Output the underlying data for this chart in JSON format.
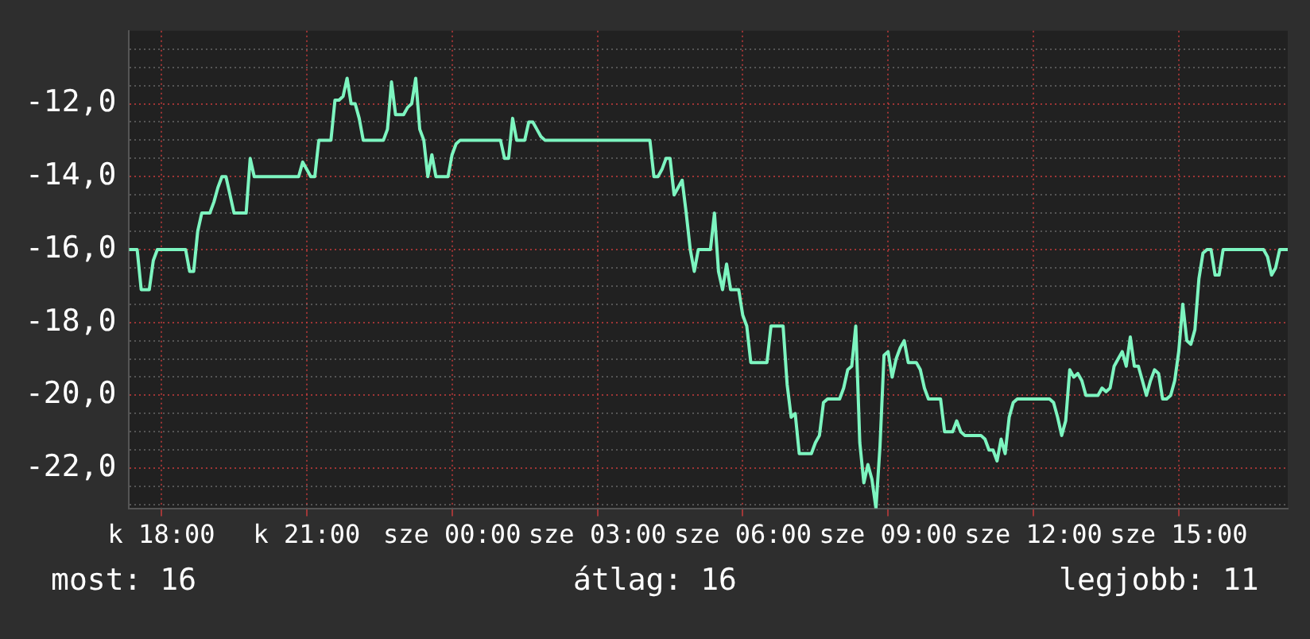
{
  "chart_data": {
    "type": "line",
    "categories": [
      null,
      null,
      null,
      null,
      null,
      null,
      null,
      null,
      "k 18:00",
      null,
      null,
      null,
      null,
      null,
      null,
      null,
      null,
      null,
      null,
      null,
      null,
      null,
      null,
      null,
      null,
      null,
      null,
      null,
      null,
      null,
      null,
      null,
      null,
      null,
      null,
      null,
      null,
      null,
      null,
      null,
      null,
      null,
      null,
      null,
      "k 21:00",
      null,
      null,
      null,
      null,
      null,
      null,
      null,
      null,
      null,
      null,
      null,
      null,
      null,
      null,
      null,
      null,
      null,
      null,
      null,
      null,
      null,
      null,
      null,
      null,
      null,
      null,
      null,
      null,
      null,
      null,
      null,
      null,
      null,
      null,
      null,
      "sze 00:00",
      null,
      null,
      null,
      null,
      null,
      null,
      null,
      null,
      null,
      null,
      null,
      null,
      null,
      null,
      null,
      null,
      null,
      null,
      null,
      null,
      null,
      null,
      null,
      null,
      null,
      null,
      null,
      null,
      null,
      null,
      null,
      null,
      null,
      null,
      null,
      "sze 03:00",
      null,
      null,
      null,
      null,
      null,
      null,
      null,
      null,
      null,
      null,
      null,
      null,
      null,
      null,
      null,
      null,
      null,
      null,
      null,
      null,
      null,
      null,
      null,
      null,
      null,
      null,
      null,
      null,
      null,
      null,
      null,
      null,
      null,
      null,
      null,
      "sze 06:00",
      null,
      null,
      null,
      null,
      null,
      null,
      null,
      null,
      null,
      null,
      null,
      null,
      null,
      null,
      null,
      null,
      null,
      null,
      null,
      null,
      null,
      null,
      null,
      null,
      null,
      null,
      null,
      null,
      null,
      null,
      null,
      null,
      null,
      null,
      null,
      "sze 09:00",
      null,
      null,
      null,
      null,
      null,
      null,
      null,
      null,
      null,
      null,
      null,
      null,
      null,
      null,
      null,
      null,
      null,
      null,
      null,
      null,
      null,
      null,
      null,
      null,
      null,
      null,
      null,
      null,
      null,
      null,
      null,
      null,
      null,
      null,
      null,
      "sze 12:00",
      null,
      null,
      null,
      null,
      null,
      null,
      null,
      null,
      null,
      null,
      null,
      null,
      null,
      null,
      null,
      null,
      null,
      null,
      null,
      null,
      null,
      null,
      null,
      null,
      null,
      null,
      null,
      null,
      null,
      null,
      null,
      null,
      null,
      null,
      null,
      "sze 15:00",
      null,
      null,
      null,
      null,
      null,
      null,
      null,
      null,
      null,
      null,
      null,
      null,
      null,
      null,
      null,
      null,
      null,
      null,
      null,
      null,
      null,
      null,
      null,
      null,
      null,
      null,
      null
    ],
    "series": [
      {
        "color": "#7df5c0",
        "values": [
          -16,
          -16,
          -16,
          -17.1,
          -17.1,
          -17.1,
          -16.3,
          -16,
          -16,
          -16,
          -16,
          -16,
          -16,
          -16,
          -16,
          -16.6,
          -16.6,
          -15.5,
          -15,
          -15,
          -15,
          -14.7,
          -14.3,
          -14,
          -14,
          -14.5,
          -15,
          -15,
          -15,
          -15,
          -13.5,
          -14,
          -14,
          -14,
          -14,
          -14,
          -14,
          -14,
          -14,
          -14,
          -14,
          -14,
          -14,
          -13.6,
          -13.8,
          -14,
          -14,
          -13,
          -13,
          -13,
          -13,
          -11.9,
          -11.9,
          -11.8,
          -11.3,
          -12,
          -12,
          -12.4,
          -13,
          -13,
          -13,
          -13,
          -13,
          -13,
          -12.7,
          -11.4,
          -12.3,
          -12.3,
          -12.3,
          -12.1,
          -12,
          -11.3,
          -12.7,
          -13,
          -14,
          -13.4,
          -14,
          -14,
          -14,
          -14,
          -13.4,
          -13.1,
          -13,
          -13,
          -13,
          -13,
          -13,
          -13,
          -13,
          -13,
          -13,
          -13,
          -13,
          -13.5,
          -13.5,
          -12.4,
          -13,
          -13,
          -13,
          -12.5,
          -12.5,
          -12.7,
          -12.9,
          -13,
          -13,
          -13,
          -13,
          -13,
          -13,
          -13,
          -13,
          -13,
          -13,
          -13,
          -13,
          -13,
          -13,
          -13,
          -13,
          -13,
          -13,
          -13,
          -13,
          -13,
          -13,
          -13,
          -13,
          -13,
          -13,
          -13,
          -14,
          -14,
          -13.8,
          -13.5,
          -13.5,
          -14.5,
          -14.3,
          -14.1,
          -15,
          -16,
          -16.6,
          -16,
          -16,
          -16,
          -16,
          -15,
          -16.6,
          -17.1,
          -16.4,
          -17.1,
          -17.1,
          -17.1,
          -17.8,
          -18.1,
          -19.1,
          -19.1,
          -19.1,
          -19.1,
          -19.1,
          -18.1,
          -18.1,
          -18.1,
          -18.1,
          -19.7,
          -20.6,
          -20.5,
          -21.6,
          -21.6,
          -21.6,
          -21.6,
          -21.3,
          -21.1,
          -20.2,
          -20.1,
          -20.1,
          -20.1,
          -20.1,
          -19.8,
          -19.3,
          -19.2,
          -18.1,
          -21.3,
          -22.4,
          -21.9,
          -22.3,
          -23.1,
          -21.4,
          -18.9,
          -18.8,
          -19.5,
          -19,
          -18.7,
          -18.5,
          -19.1,
          -19.1,
          -19.1,
          -19.3,
          -19.8,
          -20.1,
          -20.1,
          -20.1,
          -20.1,
          -21,
          -21,
          -21,
          -20.7,
          -21,
          -21.1,
          -21.1,
          -21.1,
          -21.1,
          -21.1,
          -21.2,
          -21.5,
          -21.5,
          -21.8,
          -21.2,
          -21.6,
          -20.6,
          -20.2,
          -20.1,
          -20.1,
          -20.1,
          -20.1,
          -20.1,
          -20.1,
          -20.1,
          -20.1,
          -20.1,
          -20.2,
          -20.6,
          -21.1,
          -20.7,
          -19.3,
          -19.5,
          -19.4,
          -19.6,
          -20,
          -20,
          -20,
          -20,
          -19.8,
          -19.9,
          -19.8,
          -19.2,
          -19,
          -18.8,
          -19.2,
          -18.4,
          -19.2,
          -19.2,
          -19.6,
          -20,
          -19.6,
          -19.3,
          -19.4,
          -20.1,
          -20.1,
          -20,
          -19.6,
          -18.8,
          -17.5,
          -18.5,
          -18.6,
          -18.2,
          -16.8,
          -16.1,
          -16,
          -16,
          -16.7,
          -16.7,
          -16,
          -16,
          -16,
          -16,
          -16,
          -16,
          -16,
          -16,
          -16,
          -16,
          -16,
          -16.2,
          -16.7,
          -16.5,
          -16,
          -16,
          -16
        ]
      }
    ],
    "ylim": [
      -23.1,
      -10.0
    ],
    "yticks": [
      {
        "value": -23,
        "label": null
      },
      {
        "value": -22.5,
        "label": null
      },
      {
        "value": -22,
        "label": "-22,0"
      },
      {
        "value": -21.5,
        "label": null
      },
      {
        "value": -21,
        "label": null
      },
      {
        "value": -20.5,
        "label": null
      },
      {
        "value": -20,
        "label": "-20,0"
      },
      {
        "value": -19.5,
        "label": null
      },
      {
        "value": -19,
        "label": null
      },
      {
        "value": -18.5,
        "label": null
      },
      {
        "value": -18,
        "label": "-18,0"
      },
      {
        "value": -17.5,
        "label": null
      },
      {
        "value": -17,
        "label": null
      },
      {
        "value": -16.5,
        "label": null
      },
      {
        "value": -16,
        "label": "-16,0"
      },
      {
        "value": -15.5,
        "label": null
      },
      {
        "value": -15,
        "label": null
      },
      {
        "value": -14.5,
        "label": null
      },
      {
        "value": -14,
        "label": "-14,0"
      },
      {
        "value": -13.5,
        "label": null
      },
      {
        "value": -13,
        "label": null
      },
      {
        "value": -12.5,
        "label": null
      },
      {
        "value": -12,
        "label": "-12,0"
      },
      {
        "value": -11.5,
        "label": null
      },
      {
        "value": -11,
        "label": null
      },
      {
        "value": -10.5,
        "label": null
      }
    ],
    "grid": true,
    "legend": false,
    "marker": "none",
    "line_style": "solid",
    "annotations": [
      "most: 16",
      "átlag: 16",
      "legjobb: 11"
    ]
  }
}
